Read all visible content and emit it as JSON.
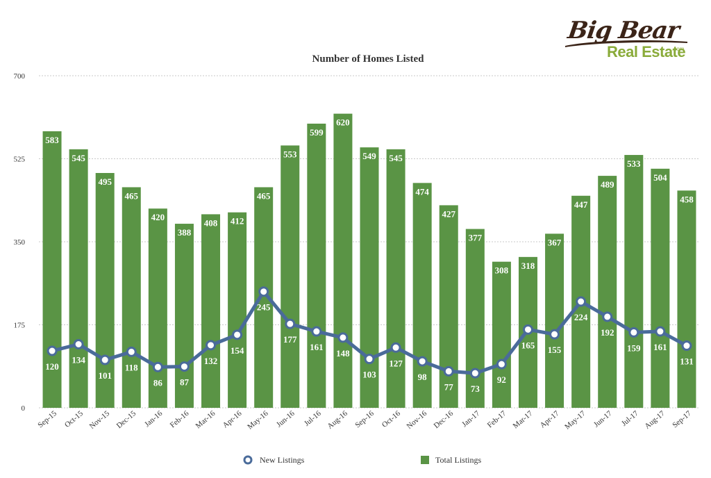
{
  "brand": {
    "logo_word1": "Big Bear",
    "logo_word2": "Real Estate",
    "logo_suffix": ".com"
  },
  "colors": {
    "bar": "#5a9445",
    "line": "#4a6b9a",
    "grid": "#c9c9c9",
    "label_text": "#ffffff",
    "text": "#333333"
  },
  "chart_data": {
    "type": "bar",
    "title": "Number of Homes Listed",
    "xlabel": "",
    "ylabel": "",
    "ylim": [
      0,
      700
    ],
    "yticks": [
      0,
      175,
      350,
      525,
      700
    ],
    "grid": true,
    "legend_position": "bottom",
    "categories": [
      "Sep-15",
      "Oct-15",
      "Nov-15",
      "Dec-15",
      "Jan-16",
      "Feb-16",
      "Mar-16",
      "Apr-16",
      "May-16",
      "Jun-16",
      "Jul-16",
      "Aug-16",
      "Sep-16",
      "Oct-16",
      "Nov-16",
      "Dec-16",
      "Jan-17",
      "Feb-17",
      "Mar-17",
      "Apr-17",
      "May-17",
      "Jun-17",
      "Jul-17",
      "Aug-17",
      "Sep-17"
    ],
    "series": [
      {
        "name": "Total Listings",
        "kind": "bar",
        "values": [
          583,
          545,
          495,
          465,
          420,
          388,
          408,
          412,
          465,
          553,
          599,
          620,
          549,
          545,
          474,
          427,
          377,
          308,
          318,
          367,
          447,
          489,
          533,
          504,
          458
        ]
      },
      {
        "name": "New Listings",
        "kind": "line",
        "values": [
          120,
          134,
          101,
          118,
          86,
          87,
          132,
          154,
          245,
          177,
          161,
          148,
          103,
          127,
          98,
          77,
          73,
          92,
          165,
          155,
          224,
          192,
          159,
          161,
          131
        ]
      }
    ]
  }
}
